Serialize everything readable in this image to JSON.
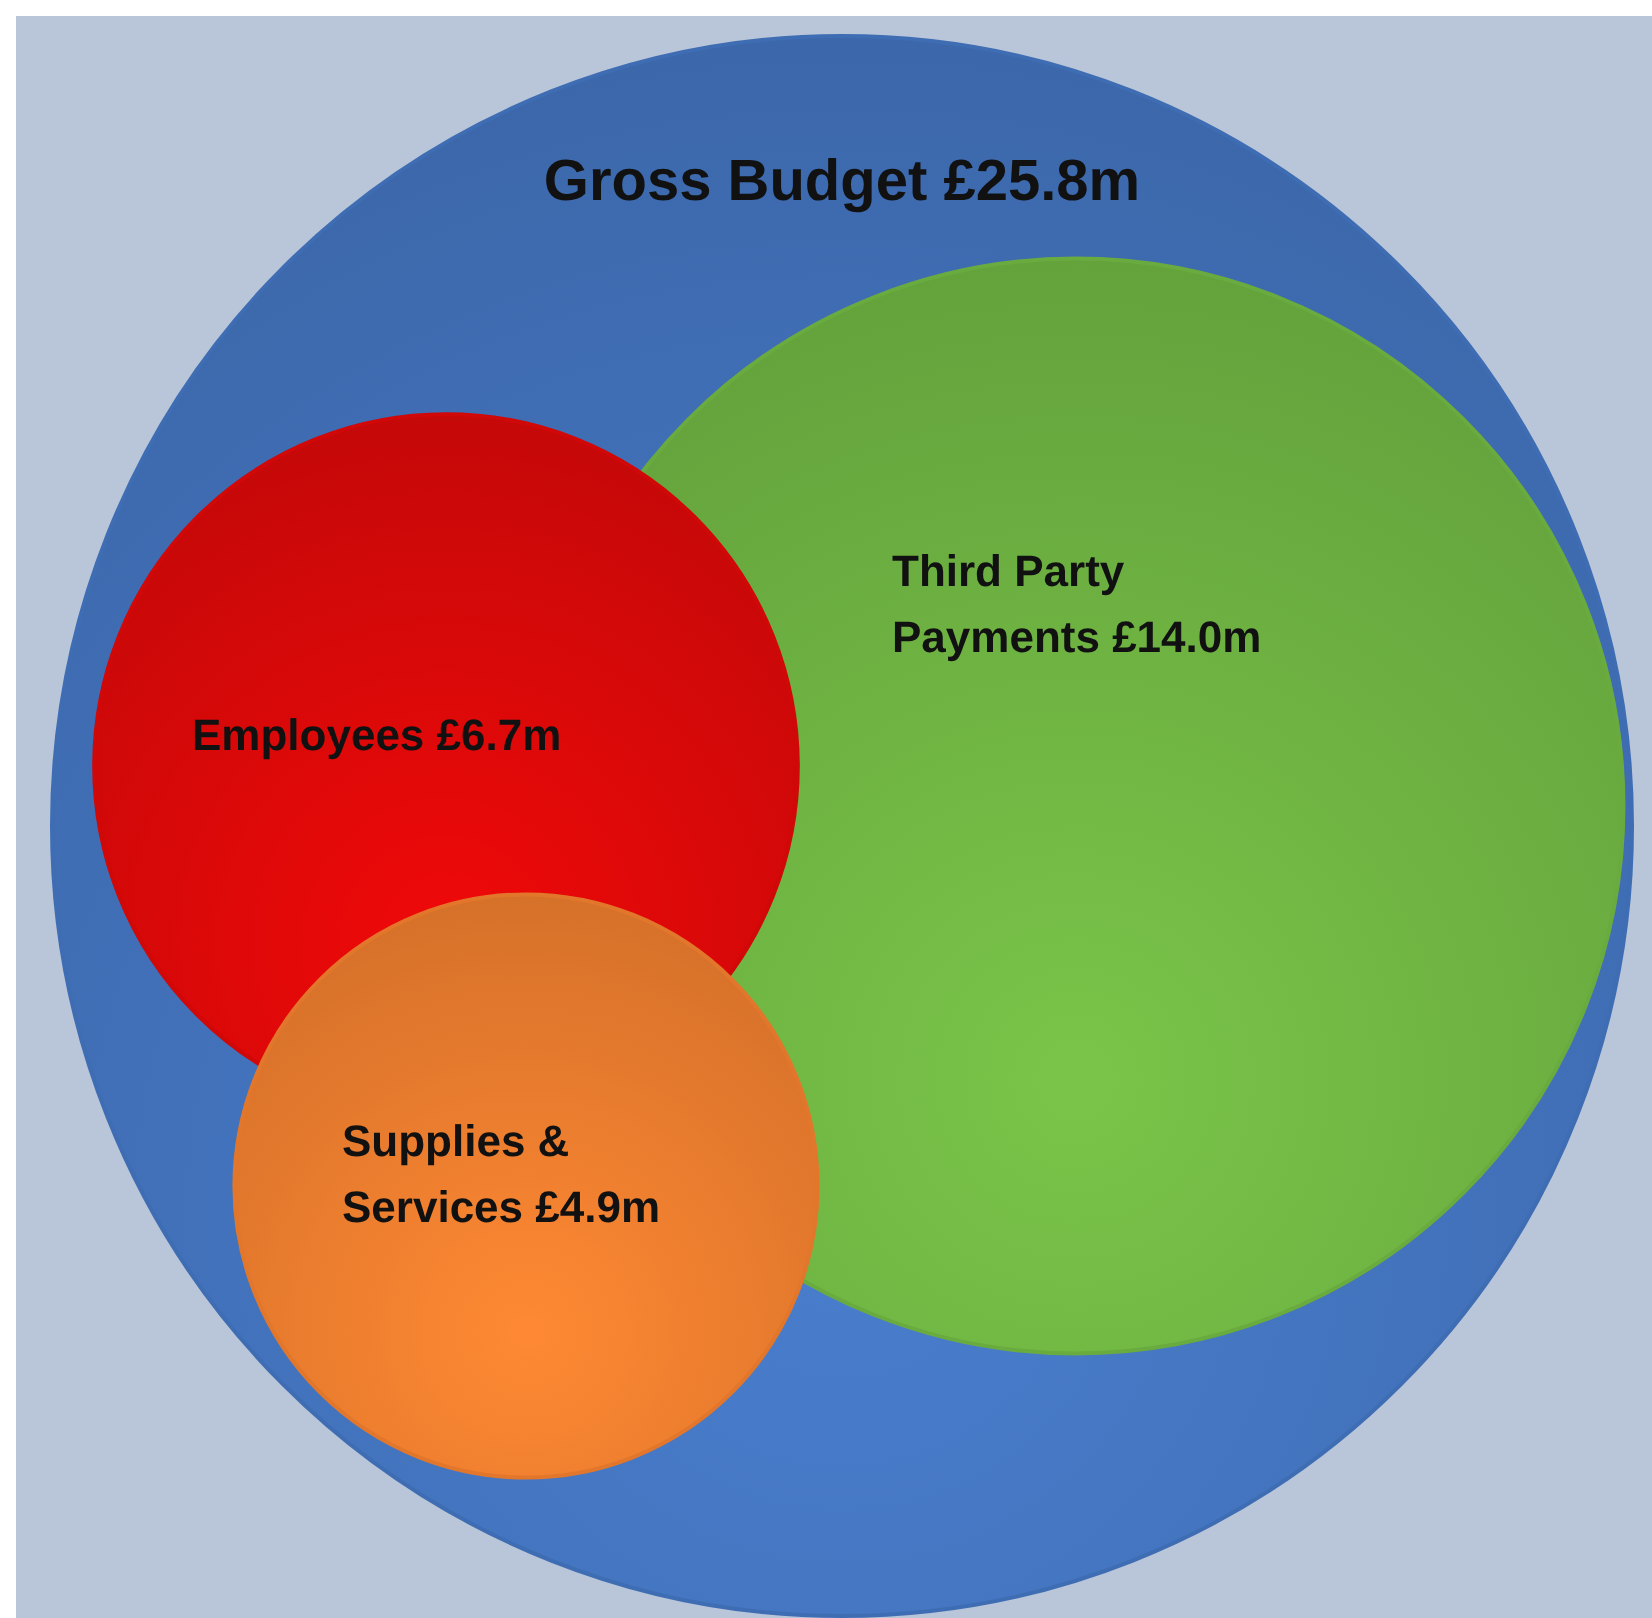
{
  "chart_data": {
    "type": "other",
    "categories": [
      "Gross Budget",
      "Employees",
      "Third Party Payments",
      "Supplies & Services"
    ],
    "values": [
      25.8,
      6.7,
      14.0,
      4.9
    ],
    "value_labels": [
      "£25.8m",
      "£6.7m",
      "£14.0m",
      "£4.9m"
    ],
    "colors": [
      "#3f6db3",
      "#d00808",
      "#6aab3f",
      "#e2772c"
    ]
  }
}
